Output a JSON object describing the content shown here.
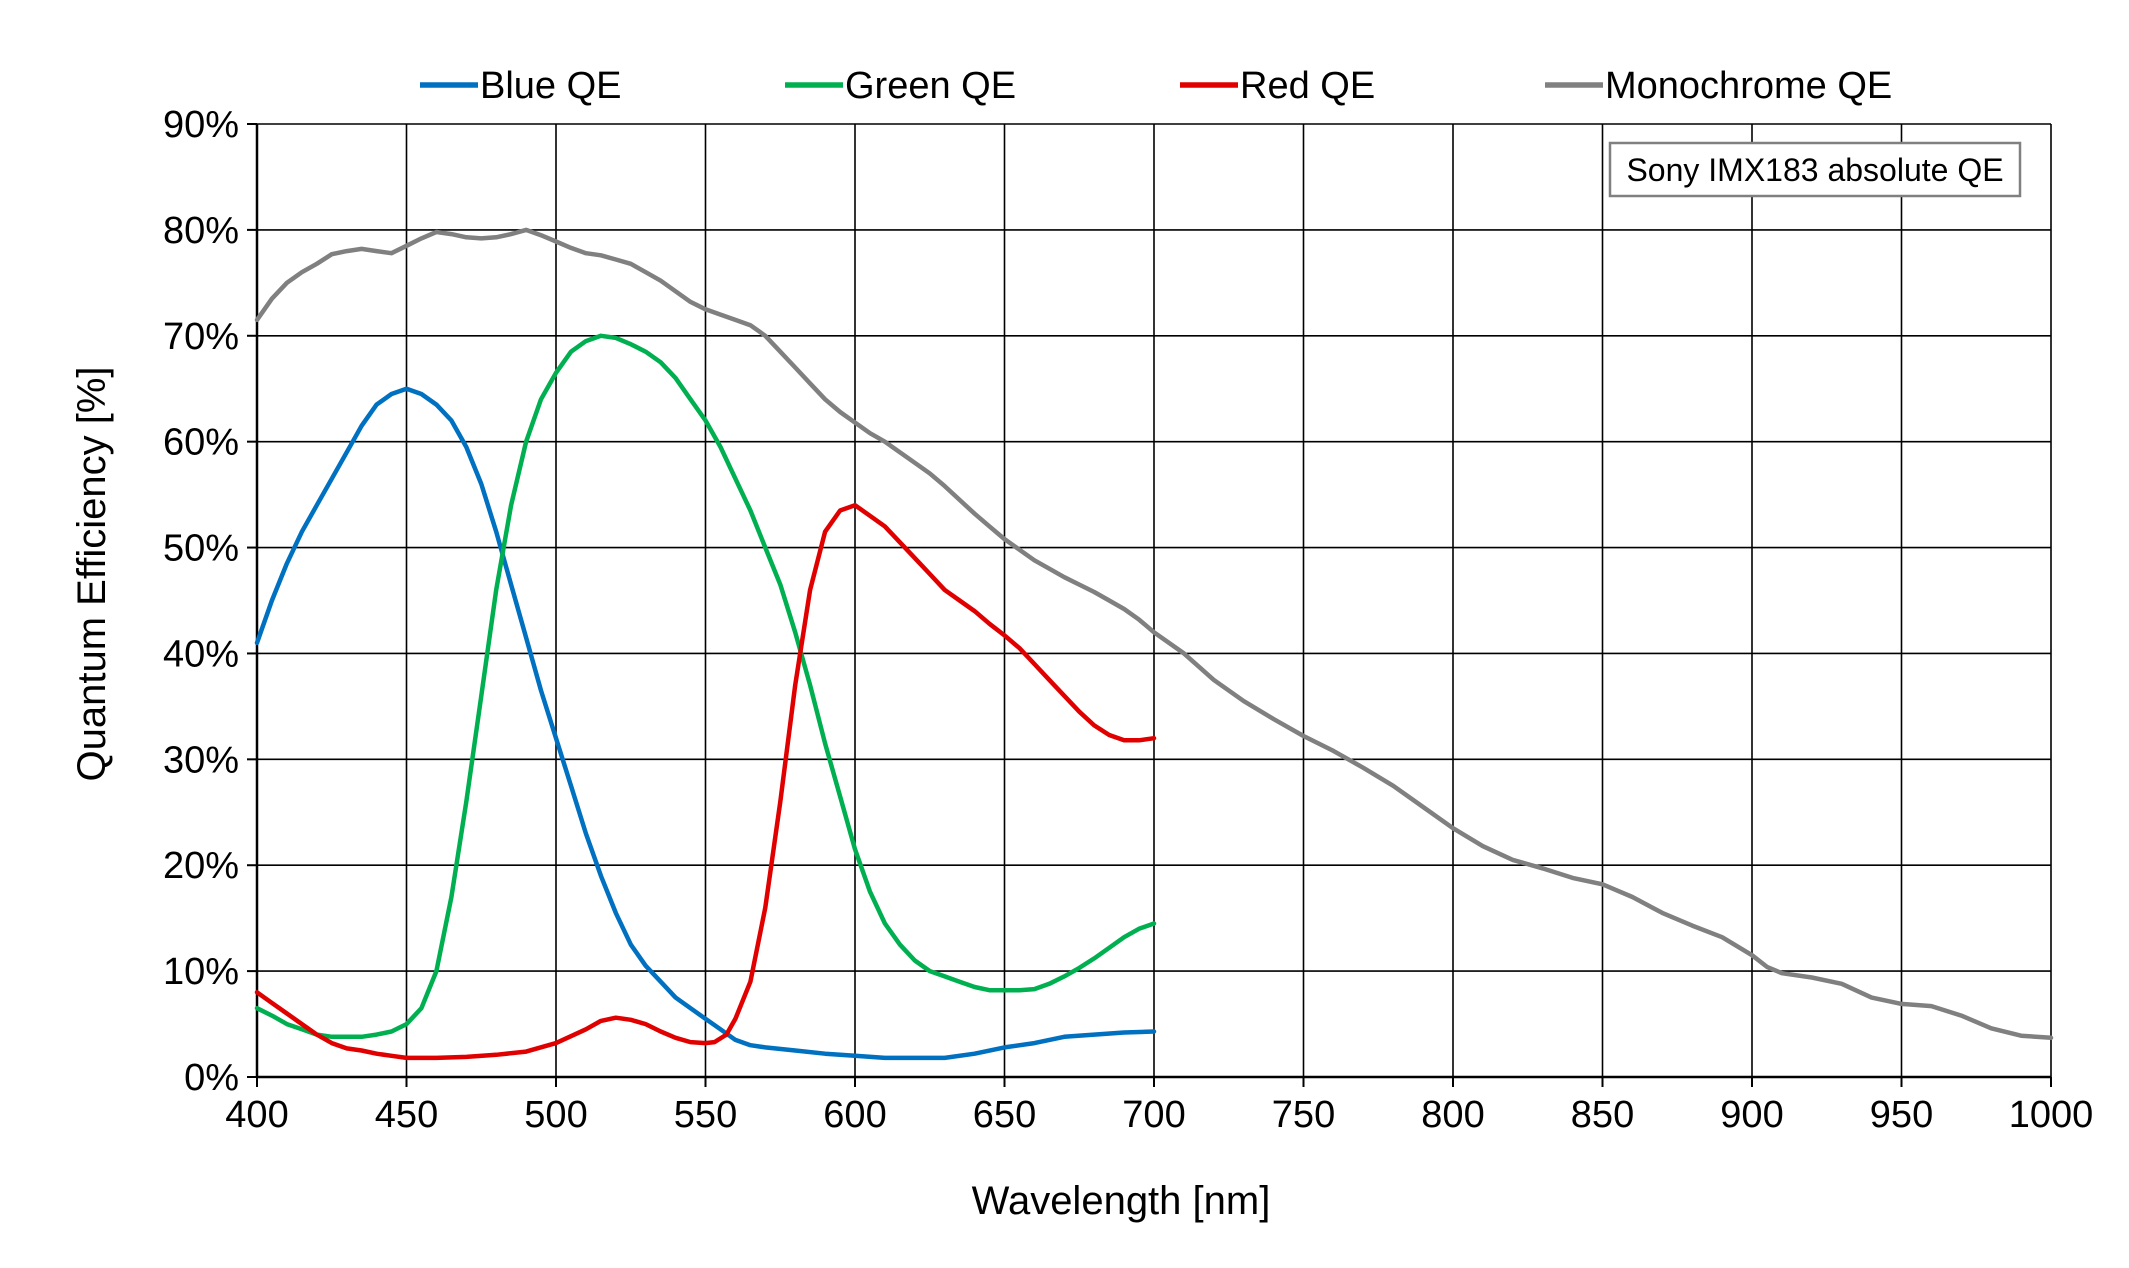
{
  "chart_data": {
    "type": "line",
    "title": "",
    "xlabel": "Wavelength [nm]",
    "ylabel": "Quantum Efficiency [%]",
    "xlim": [
      400,
      1000
    ],
    "ylim": [
      0,
      90
    ],
    "x_ticks": [
      "400",
      "450",
      "500",
      "550",
      "600",
      "650",
      "700",
      "750",
      "800",
      "850",
      "900",
      "950",
      "1000"
    ],
    "y_ticks": [
      "0%",
      "10%",
      "20%",
      "30%",
      "40%",
      "50%",
      "60%",
      "70%",
      "80%",
      "90%"
    ],
    "grid": true,
    "legend_position": "top",
    "annotation": "Sony IMX183 absolute QE",
    "series": [
      {
        "name": "Blue QE",
        "color": "#0070c0",
        "points": [
          [
            400,
            41
          ],
          [
            405,
            45
          ],
          [
            410,
            48.5
          ],
          [
            415,
            51.5
          ],
          [
            420,
            54
          ],
          [
            425,
            56.5
          ],
          [
            430,
            59
          ],
          [
            435,
            61.5
          ],
          [
            440,
            63.5
          ],
          [
            445,
            64.5
          ],
          [
            450,
            65
          ],
          [
            455,
            64.5
          ],
          [
            460,
            63.5
          ],
          [
            465,
            62
          ],
          [
            470,
            59.5
          ],
          [
            475,
            56
          ],
          [
            480,
            51.5
          ],
          [
            485,
            46.5
          ],
          [
            490,
            41.5
          ],
          [
            495,
            36.5
          ],
          [
            500,
            32
          ],
          [
            505,
            27.5
          ],
          [
            510,
            23
          ],
          [
            515,
            19
          ],
          [
            520,
            15.5
          ],
          [
            525,
            12.5
          ],
          [
            530,
            10.5
          ],
          [
            535,
            9
          ],
          [
            540,
            7.5
          ],
          [
            545,
            6.5
          ],
          [
            550,
            5.5
          ],
          [
            555,
            4.5
          ],
          [
            560,
            3.5
          ],
          [
            565,
            3
          ],
          [
            570,
            2.8
          ],
          [
            580,
            2.5
          ],
          [
            590,
            2.2
          ],
          [
            600,
            2
          ],
          [
            610,
            1.8
          ],
          [
            620,
            1.8
          ],
          [
            630,
            1.8
          ],
          [
            640,
            2.2
          ],
          [
            650,
            2.8
          ],
          [
            660,
            3.2
          ],
          [
            670,
            3.8
          ],
          [
            680,
            4
          ],
          [
            690,
            4.2
          ],
          [
            700,
            4.3
          ]
        ]
      },
      {
        "name": "Green QE",
        "color": "#00b050",
        "points": [
          [
            400,
            6.5
          ],
          [
            405,
            5.8
          ],
          [
            410,
            5
          ],
          [
            415,
            4.5
          ],
          [
            420,
            4
          ],
          [
            425,
            3.8
          ],
          [
            430,
            3.8
          ],
          [
            435,
            3.8
          ],
          [
            440,
            4
          ],
          [
            445,
            4.3
          ],
          [
            450,
            5
          ],
          [
            455,
            6.5
          ],
          [
            460,
            10
          ],
          [
            465,
            17
          ],
          [
            470,
            26
          ],
          [
            475,
            36
          ],
          [
            480,
            46
          ],
          [
            485,
            54
          ],
          [
            490,
            60
          ],
          [
            495,
            64
          ],
          [
            500,
            66.5
          ],
          [
            505,
            68.5
          ],
          [
            510,
            69.5
          ],
          [
            515,
            70
          ],
          [
            520,
            69.8
          ],
          [
            525,
            69.2
          ],
          [
            530,
            68.5
          ],
          [
            535,
            67.5
          ],
          [
            540,
            66
          ],
          [
            545,
            64
          ],
          [
            550,
            62
          ],
          [
            555,
            59.5
          ],
          [
            560,
            56.5
          ],
          [
            565,
            53.5
          ],
          [
            570,
            50
          ],
          [
            575,
            46.5
          ],
          [
            580,
            42
          ],
          [
            585,
            37
          ],
          [
            590,
            31.5
          ],
          [
            595,
            26.5
          ],
          [
            600,
            21.5
          ],
          [
            605,
            17.5
          ],
          [
            610,
            14.5
          ],
          [
            615,
            12.5
          ],
          [
            620,
            11
          ],
          [
            625,
            10
          ],
          [
            630,
            9.5
          ],
          [
            635,
            9
          ],
          [
            640,
            8.5
          ],
          [
            645,
            8.2
          ],
          [
            650,
            8.2
          ],
          [
            655,
            8.2
          ],
          [
            660,
            8.3
          ],
          [
            665,
            8.8
          ],
          [
            670,
            9.5
          ],
          [
            675,
            10.3
          ],
          [
            680,
            11.2
          ],
          [
            685,
            12.2
          ],
          [
            690,
            13.2
          ],
          [
            695,
            14
          ],
          [
            700,
            14.5
          ]
        ]
      },
      {
        "name": "Red QE",
        "color": "#e00000",
        "points": [
          [
            400,
            8
          ],
          [
            405,
            7
          ],
          [
            410,
            6
          ],
          [
            415,
            5
          ],
          [
            420,
            4
          ],
          [
            425,
            3.2
          ],
          [
            430,
            2.7
          ],
          [
            435,
            2.5
          ],
          [
            440,
            2.2
          ],
          [
            445,
            2
          ],
          [
            450,
            1.8
          ],
          [
            455,
            1.8
          ],
          [
            460,
            1.8
          ],
          [
            470,
            1.9
          ],
          [
            480,
            2.1
          ],
          [
            490,
            2.4
          ],
          [
            500,
            3.2
          ],
          [
            510,
            4.5
          ],
          [
            515,
            5.3
          ],
          [
            520,
            5.6
          ],
          [
            525,
            5.4
          ],
          [
            530,
            5
          ],
          [
            535,
            4.3
          ],
          [
            540,
            3.7
          ],
          [
            545,
            3.3
          ],
          [
            550,
            3.2
          ],
          [
            553,
            3.3
          ],
          [
            557,
            4
          ],
          [
            560,
            5.5
          ],
          [
            565,
            9
          ],
          [
            570,
            16
          ],
          [
            575,
            26
          ],
          [
            580,
            37
          ],
          [
            585,
            46
          ],
          [
            590,
            51.5
          ],
          [
            595,
            53.5
          ],
          [
            600,
            54
          ],
          [
            605,
            53
          ],
          [
            610,
            52
          ],
          [
            615,
            50.5
          ],
          [
            620,
            49
          ],
          [
            625,
            47.5
          ],
          [
            630,
            46
          ],
          [
            635,
            45
          ],
          [
            640,
            44
          ],
          [
            645,
            42.8
          ],
          [
            650,
            41.7
          ],
          [
            655,
            40.5
          ],
          [
            660,
            39
          ],
          [
            665,
            37.5
          ],
          [
            670,
            36
          ],
          [
            675,
            34.5
          ],
          [
            680,
            33.2
          ],
          [
            685,
            32.3
          ],
          [
            690,
            31.8
          ],
          [
            695,
            31.8
          ],
          [
            700,
            32
          ]
        ]
      },
      {
        "name": "Monochrome QE",
        "color": "#808080",
        "points": [
          [
            400,
            71.5
          ],
          [
            405,
            73.5
          ],
          [
            410,
            75
          ],
          [
            415,
            76
          ],
          [
            420,
            76.8
          ],
          [
            425,
            77.7
          ],
          [
            430,
            78
          ],
          [
            435,
            78.2
          ],
          [
            440,
            78
          ],
          [
            445,
            77.8
          ],
          [
            450,
            78.5
          ],
          [
            455,
            79.2
          ],
          [
            460,
            79.8
          ],
          [
            465,
            79.6
          ],
          [
            470,
            79.3
          ],
          [
            475,
            79.2
          ],
          [
            480,
            79.3
          ],
          [
            485,
            79.6
          ],
          [
            490,
            80
          ],
          [
            495,
            79.5
          ],
          [
            500,
            78.9
          ],
          [
            505,
            78.3
          ],
          [
            510,
            77.8
          ],
          [
            515,
            77.6
          ],
          [
            520,
            77.2
          ],
          [
            525,
            76.8
          ],
          [
            530,
            76
          ],
          [
            535,
            75.2
          ],
          [
            540,
            74.2
          ],
          [
            545,
            73.2
          ],
          [
            550,
            72.5
          ],
          [
            555,
            72
          ],
          [
            560,
            71.5
          ],
          [
            565,
            71
          ],
          [
            570,
            70
          ],
          [
            575,
            68.5
          ],
          [
            580,
            67
          ],
          [
            585,
            65.5
          ],
          [
            590,
            64
          ],
          [
            595,
            62.8
          ],
          [
            600,
            61.8
          ],
          [
            605,
            60.8
          ],
          [
            610,
            60
          ],
          [
            615,
            59
          ],
          [
            620,
            58
          ],
          [
            625,
            57
          ],
          [
            630,
            55.8
          ],
          [
            635,
            54.5
          ],
          [
            640,
            53.2
          ],
          [
            645,
            52
          ],
          [
            650,
            50.8
          ],
          [
            655,
            49.8
          ],
          [
            660,
            48.8
          ],
          [
            665,
            48
          ],
          [
            670,
            47.2
          ],
          [
            675,
            46.5
          ],
          [
            680,
            45.8
          ],
          [
            685,
            45
          ],
          [
            690,
            44.2
          ],
          [
            695,
            43.2
          ],
          [
            700,
            42
          ],
          [
            710,
            40
          ],
          [
            720,
            37.5
          ],
          [
            730,
            35.5
          ],
          [
            740,
            33.8
          ],
          [
            750,
            32.2
          ],
          [
            760,
            30.8
          ],
          [
            770,
            29.2
          ],
          [
            780,
            27.5
          ],
          [
            790,
            25.5
          ],
          [
            800,
            23.5
          ],
          [
            810,
            21.8
          ],
          [
            820,
            20.5
          ],
          [
            830,
            19.7
          ],
          [
            840,
            18.8
          ],
          [
            850,
            18.2
          ],
          [
            860,
            17
          ],
          [
            870,
            15.5
          ],
          [
            880,
            14.3
          ],
          [
            890,
            13.2
          ],
          [
            900,
            11.5
          ],
          [
            905,
            10.4
          ],
          [
            910,
            9.8
          ],
          [
            920,
            9.4
          ],
          [
            930,
            8.8
          ],
          [
            940,
            7.5
          ],
          [
            950,
            6.9
          ],
          [
            960,
            6.7
          ],
          [
            970,
            5.8
          ],
          [
            980,
            4.6
          ],
          [
            990,
            3.9
          ],
          [
            1000,
            3.7
          ]
        ]
      }
    ]
  }
}
